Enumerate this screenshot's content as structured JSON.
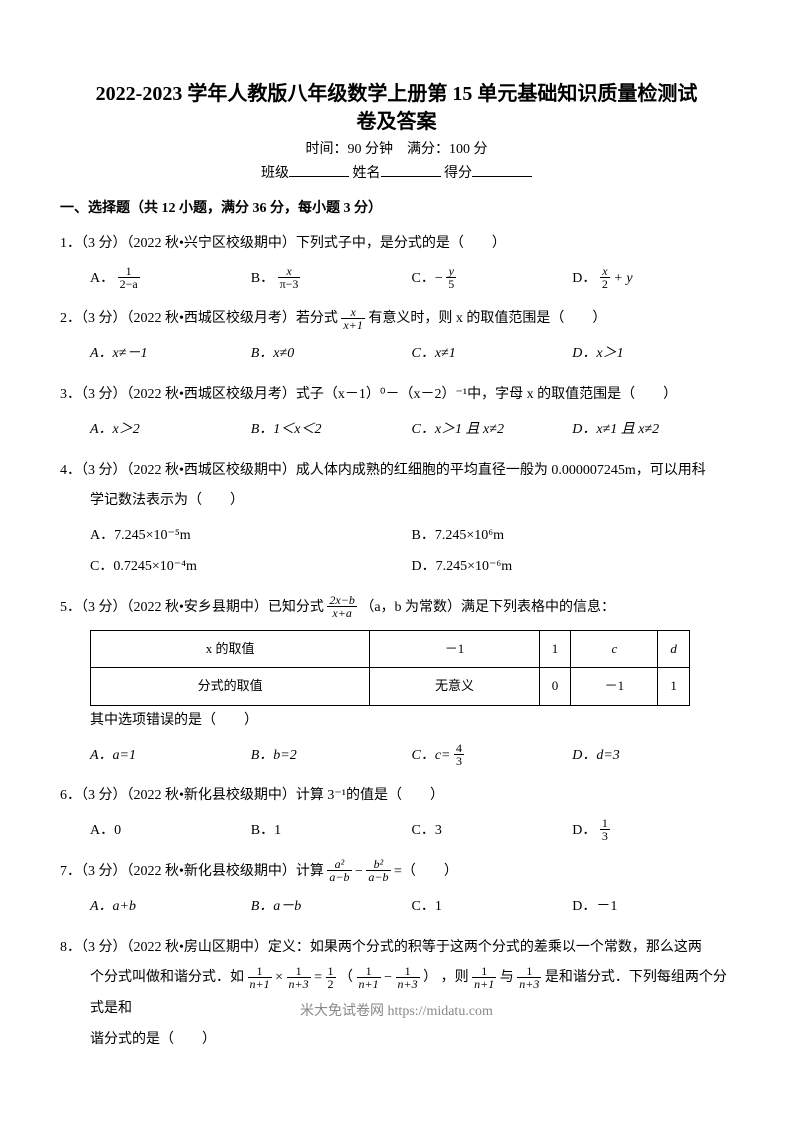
{
  "title1": "2022-2023 学年人教版八年级数学上册第 15 单元基础知识质量检测试",
  "title2": "卷及答案",
  "time_full": "时间：90 分钟　满分：100 分",
  "blank_labels": {
    "class": "班级",
    "name": "姓名",
    "score": "得分"
  },
  "section1": "一、选择题（共 12 小题，满分 36 分，每小题 3 分）",
  "q1": {
    "stem": "1．（3 分）（2022 秋•兴宁区校级期中）下列式子中，是分式的是（　　）",
    "A": "A．",
    "B": "B．",
    "C_pre": "C．−",
    "D_pre": "D．",
    "D_suf": " + y",
    "f_a_num": "1",
    "f_a_den": "2−a",
    "f_b_num": "x",
    "f_b_den": "π−3",
    "f_c_num": "y",
    "f_c_den": "5",
    "f_d_num": "x",
    "f_d_den": "2"
  },
  "q2": {
    "stem_pre": "2．（3 分）（2022 秋•西城区校级月考）若分式",
    "stem_suf": "有意义时，则 x 的取值范围是（　　）",
    "f_num": "x",
    "f_den": "x+1",
    "A": "A．x≠－1",
    "B": "B．x≠0",
    "C": "C．x≠1",
    "D": "D．x＞1"
  },
  "q3": {
    "stem": "3．（3 分）（2022 秋•西城区校级月考）式子（x－1）⁰－（x－2）⁻¹中，字母 x 的取值范围是（　　）",
    "A": "A．x＞2",
    "B": "B．1＜x＜2",
    "C": "C．x＞1 且 x≠2",
    "D": "D．x≠1 且 x≠2"
  },
  "q4": {
    "stem1": "4．（3 分）（2022 秋•西城区校级期中）成人体内成熟的红细胞的平均直径一般为 0.000007245m，可以用科",
    "stem2": "学记数法表示为（　　）",
    "A": "A．7.245×10⁻⁵m",
    "B": "B．7.245×10⁶m",
    "C": "C．0.7245×10⁻⁴m",
    "D": "D．7.245×10⁻⁶m"
  },
  "q5": {
    "stem_pre": "5．（3 分）（2022 秋•安乡县期中）已知分式",
    "stem_suf": "（a，b 为常数）满足下列表格中的信息：",
    "f_num": "2x−b",
    "f_den": "x+a",
    "row1": [
      "x 的取值",
      "－1",
      "1",
      "c",
      "d"
    ],
    "row2": [
      "分式的取值",
      "无意义",
      "0",
      "－1",
      "1"
    ],
    "below": "其中选项错误的是（　　）",
    "A": "A．a=1",
    "B": "B．b=2",
    "C_pre": "C．c=",
    "c_num": "4",
    "c_den": "3",
    "D": "D．d=3"
  },
  "q6": {
    "stem": "6．（3 分）（2022 秋•新化县校级期中）计算 3⁻¹的值是（　　）",
    "A": "A．0",
    "B": "B．1",
    "C": "C．3",
    "D_pre": "D．",
    "d_num": "1",
    "d_den": "3"
  },
  "q7": {
    "stem_pre": "7．（3 分）（2022 秋•新化县校级期中）计算",
    "minus": " − ",
    "eq": " =（　　）",
    "f1_num": "a²",
    "f1_den": "a−b",
    "f2_num": "b²",
    "f2_den": "a−b",
    "A": "A．a+b",
    "B": "B．a－b",
    "C": "C．1",
    "D": "D．－1"
  },
  "q8": {
    "line1": "8．（3 分）（2022 秋•房山区期中）定义：如果两个分式的积等于这两个分式的差乘以一个常数，那么这两",
    "line2_pre": "个分式叫做和谐分式．如",
    "times": " × ",
    "eq": " = ",
    "half_num": "1",
    "half_den": "2",
    "lpar": "（",
    "minus": " − ",
    "rpar": "）",
    "line2_mid": "，则",
    "and": "与",
    "line2_suf": "是和谐分式．下列每组两个分式是和",
    "f_small_num": "1",
    "f_a_den": "n+1",
    "f_b_den": "n+3",
    "line3": "谐分式的是（　　）"
  },
  "footer": "米大免试卷网 https://midatu.com",
  "colors": {
    "text": "#000000",
    "bg": "#ffffff",
    "footer": "#888888",
    "border": "#000000"
  }
}
